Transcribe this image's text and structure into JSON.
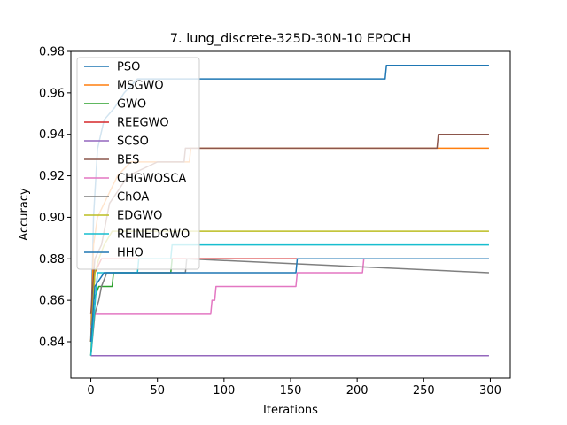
{
  "chart_data": {
    "type": "line",
    "title": "7.  lung_discrete-325D-30N-10 EPOCH",
    "xlabel": "Iterations",
    "ylabel": "Accuracy",
    "xlim": [
      -15,
      315
    ],
    "ylim": [
      0.8225,
      0.98
    ],
    "xticks": [
      0,
      50,
      100,
      150,
      200,
      250,
      300
    ],
    "yticks": [
      0.84,
      0.86,
      0.88,
      0.9,
      0.92,
      0.94,
      0.96,
      0.98
    ],
    "ytick_labels": [
      "0.84",
      "0.86",
      "0.88",
      "0.90",
      "0.92",
      "0.94",
      "0.96",
      "0.98"
    ],
    "legend_position": "upper-left",
    "grid": false,
    "series": [
      {
        "name": "PSO",
        "color": "#1f77b4",
        "points": [
          [
            0,
            0.84
          ],
          [
            2,
            0.9
          ],
          [
            5,
            0.933
          ],
          [
            10,
            0.947
          ],
          [
            18,
            0.953
          ],
          [
            25,
            0.96
          ],
          [
            35,
            0.9667
          ],
          [
            221,
            0.9667
          ],
          [
            222,
            0.9733
          ],
          [
            299,
            0.9733
          ]
        ]
      },
      {
        "name": "MSGWO",
        "color": "#ff7f0e",
        "points": [
          [
            0,
            0.84
          ],
          [
            2,
            0.8867
          ],
          [
            5,
            0.9
          ],
          [
            10,
            0.9067
          ],
          [
            20,
            0.92
          ],
          [
            30,
            0.9267
          ],
          [
            74,
            0.9267
          ],
          [
            75,
            0.9333
          ],
          [
            299,
            0.9333
          ]
        ]
      },
      {
        "name": "GWO",
        "color": "#2ca02c",
        "points": [
          [
            0,
            0.8333
          ],
          [
            2,
            0.86
          ],
          [
            6,
            0.8667
          ],
          [
            16,
            0.8667
          ],
          [
            17,
            0.8733
          ],
          [
            60,
            0.8733
          ],
          [
            61,
            0.88
          ],
          [
            299,
            0.88
          ]
        ]
      },
      {
        "name": "REEGWO",
        "color": "#d62728",
        "points": [
          [
            0,
            0.84
          ],
          [
            3,
            0.8733
          ],
          [
            8,
            0.88
          ],
          [
            299,
            0.88
          ]
        ]
      },
      {
        "name": "SCSO",
        "color": "#9467bd",
        "points": [
          [
            0,
            0.8333
          ],
          [
            299,
            0.8333
          ]
        ]
      },
      {
        "name": "BES",
        "color": "#8c564b",
        "points": [
          [
            0,
            0.8533
          ],
          [
            3,
            0.88
          ],
          [
            8,
            0.8867
          ],
          [
            14,
            0.9067
          ],
          [
            28,
            0.92
          ],
          [
            50,
            0.9267
          ],
          [
            70,
            0.9267
          ],
          [
            71,
            0.9333
          ],
          [
            260,
            0.9333
          ],
          [
            261,
            0.94
          ],
          [
            299,
            0.94
          ]
        ]
      },
      {
        "name": "CHGWOSCA",
        "color": "#e377c2",
        "points": [
          [
            0,
            0.8467
          ],
          [
            3,
            0.8533
          ],
          [
            90,
            0.8533
          ],
          [
            91,
            0.86
          ],
          [
            93,
            0.86
          ],
          [
            94,
            0.8667
          ],
          [
            154,
            0.8667
          ],
          [
            155,
            0.8733
          ],
          [
            204,
            0.8733
          ],
          [
            205,
            0.88
          ],
          [
            299,
            0.88
          ]
        ]
      },
      {
        "name": "ChOA",
        "color": "#7f7f7f",
        "points": [
          [
            0,
            0.8333
          ],
          [
            3,
            0.8533
          ],
          [
            6,
            0.86
          ],
          [
            8,
            0.8667
          ],
          [
            12,
            0.8733
          ],
          [
            71,
            0.8733
          ],
          [
            72,
            0.88
          ],
          [
            299,
            0.8733
          ]
        ]
      },
      {
        "name": "EDGWO",
        "color": "#bcbd22",
        "points": [
          [
            0,
            0.84
          ],
          [
            3,
            0.8733
          ],
          [
            6,
            0.88
          ],
          [
            10,
            0.8867
          ],
          [
            16,
            0.8933
          ],
          [
            299,
            0.8933
          ]
        ]
      },
      {
        "name": "REINEDGWO",
        "color": "#17becf",
        "points": [
          [
            0,
            0.8333
          ],
          [
            5,
            0.8733
          ],
          [
            35,
            0.8733
          ],
          [
            36,
            0.88
          ],
          [
            60,
            0.88
          ],
          [
            61,
            0.8867
          ],
          [
            299,
            0.8867
          ]
        ]
      },
      {
        "name": "HHO",
        "color": "#1f77b4",
        "points": [
          [
            0,
            0.84
          ],
          [
            3,
            0.8667
          ],
          [
            10,
            0.8733
          ],
          [
            154,
            0.8733
          ],
          [
            155,
            0.88
          ],
          [
            299,
            0.88
          ]
        ]
      }
    ]
  }
}
